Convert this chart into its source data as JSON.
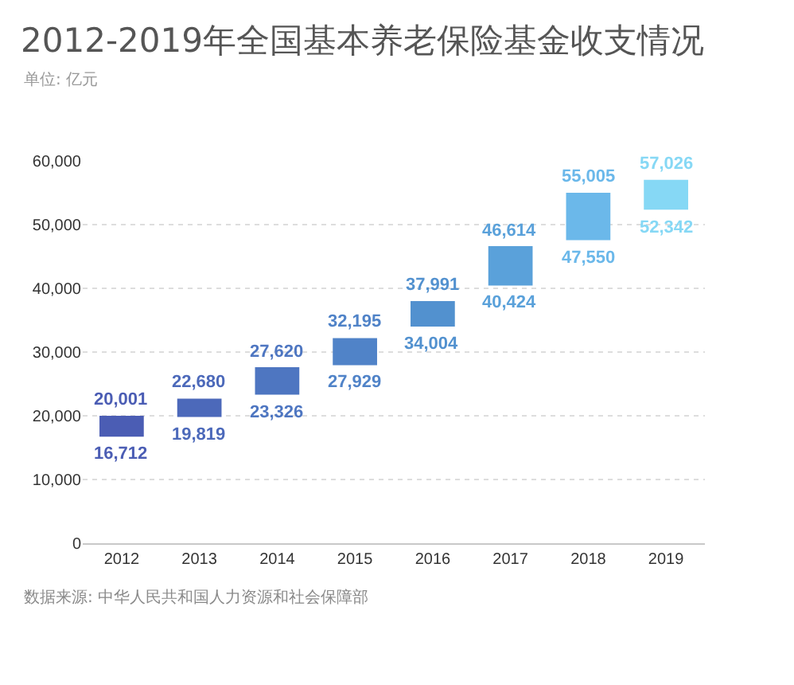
{
  "chart_data": {
    "type": "bar",
    "title": "2012-2019年全国基本养老保险基金收支情况",
    "subtitle": "单位: 亿元",
    "categories": [
      "2012",
      "2013",
      "2014",
      "2015",
      "2016",
      "2017",
      "2018",
      "2019"
    ],
    "base": [
      16712,
      19819,
      23326,
      27929,
      34004,
      40424,
      47550,
      52342
    ],
    "values": [
      3289,
      2861,
      4294,
      4266,
      3987,
      6190,
      7455,
      4684
    ],
    "colors": [
      "#4b5db4",
      "#4c69ba",
      "#4e76c1",
      "#5083c8",
      "#5291cf",
      "#5aa1da",
      "#6bb8ea",
      "#86d8f5"
    ],
    "ylim": [
      0,
      60000
    ],
    "yticks": [
      0,
      {
        "value": 10000,
        "label": "10,000"
      },
      {
        "value": 20000,
        "label": "20,000"
      },
      {
        "value": 30000,
        "label": "30,000"
      },
      {
        "value": 40000,
        "label": "40,000"
      },
      {
        "value": 50000,
        "label": "50,000"
      },
      {
        "value": 60000,
        "label": "60,000"
      }
    ],
    "grid": "y",
    "annotations": [
      {
        "text": "20,001",
        "x": "2012",
        "y": 20001
      },
      {
        "text": "16,712",
        "x": "2012",
        "y": 16712
      },
      {
        "text": "22,680",
        "x": "2013",
        "y": 22680
      },
      {
        "text": "19,819",
        "x": "2013",
        "y": 19819
      },
      {
        "text": "27,620",
        "x": "2014",
        "y": 27620
      },
      {
        "text": "23,326",
        "x": "2014",
        "y": 23326
      },
      {
        "text": "32,195",
        "x": "2015",
        "y": 32195
      },
      {
        "text": "27,929",
        "x": "2015",
        "y": 27929
      },
      {
        "text": "37,991",
        "x": "2016",
        "y": 37991
      },
      {
        "text": "34,004",
        "x": "2016",
        "y": 34004
      },
      {
        "text": "46,614",
        "x": "2017",
        "y": 46614
      },
      {
        "text": "40,424",
        "x": "2017",
        "y": 40424
      },
      {
        "text": "55,005",
        "x": "2018",
        "y": 55005
      },
      {
        "text": "47,550",
        "x": "2018",
        "y": 47550
      },
      {
        "text": "57,026",
        "x": "2019",
        "y": 57026
      },
      {
        "text": "52,342",
        "x": "2019",
        "y": 52342
      },
      "数据来源: 中华人民共和国人力资源和社会保障部"
    ]
  }
}
